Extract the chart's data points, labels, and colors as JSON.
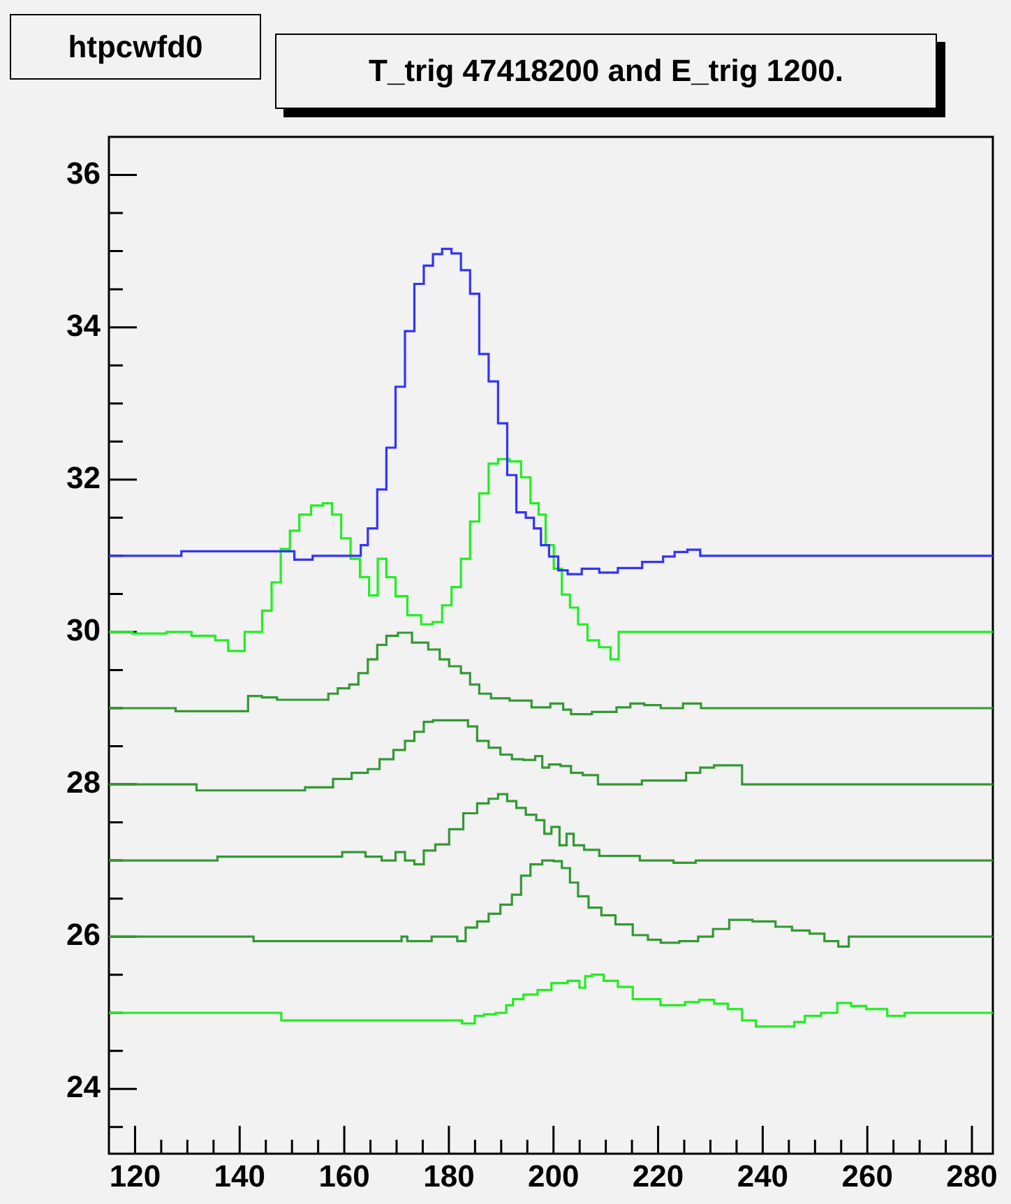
{
  "chart_data": {
    "type": "step",
    "title": "T_trig 47418200 and E_trig 1200.",
    "annotations": [
      "htpcwfd0"
    ],
    "xlim": [
      115,
      284
    ],
    "ylim": [
      23.15,
      36.5
    ],
    "xticks": [
      120,
      {
        "value": 125,
        "label": null
      },
      {
        "value": 130,
        "label": null
      },
      {
        "value": 135,
        "label": null
      },
      140,
      {
        "value": 145,
        "label": null
      },
      {
        "value": 150,
        "label": null
      },
      {
        "value": 155,
        "label": null
      },
      160,
      {
        "value": 165,
        "label": null
      },
      {
        "value": 170,
        "label": null
      },
      {
        "value": 175,
        "label": null
      },
      180,
      {
        "value": 185,
        "label": null
      },
      {
        "value": 190,
        "label": null
      },
      {
        "value": 195,
        "label": null
      },
      200,
      {
        "value": 205,
        "label": null
      },
      {
        "value": 210,
        "label": null
      },
      {
        "value": 215,
        "label": null
      },
      220,
      {
        "value": 225,
        "label": null
      },
      {
        "value": 230,
        "label": null
      },
      {
        "value": 235,
        "label": null
      },
      240,
      {
        "value": 245,
        "label": null
      },
      {
        "value": 250,
        "label": null
      },
      {
        "value": 255,
        "label": null
      },
      260,
      {
        "value": 265,
        "label": null
      },
      {
        "value": 270,
        "label": null
      },
      {
        "value": 275,
        "label": null
      },
      280
    ],
    "yticks": [
      {
        "value": 23.5,
        "label": null
      },
      24,
      {
        "value": 24.5,
        "label": null
      },
      {
        "value": 25,
        "label": null
      },
      {
        "value": 25.5,
        "label": null
      },
      26,
      {
        "value": 26.5,
        "label": null
      },
      {
        "value": 27,
        "label": null
      },
      {
        "value": 27.5,
        "label": null
      },
      28,
      {
        "value": 28.5,
        "label": null
      },
      {
        "value": 29,
        "label": null
      },
      {
        "value": 29.5,
        "label": null
      },
      30,
      {
        "value": 30.5,
        "label": null
      },
      {
        "value": 31,
        "label": null
      },
      {
        "value": 31.5,
        "label": null
      },
      32,
      {
        "value": 32.5,
        "label": null
      },
      {
        "value": 33,
        "label": null
      },
      {
        "value": 33.5,
        "label": null
      },
      34,
      {
        "value": 34.5,
        "label": null
      },
      {
        "value": 35,
        "label": null
      },
      {
        "value": 35.5,
        "label": null
      },
      36
    ],
    "grid": false,
    "legend": false,
    "series": [
      {
        "color": "#3333ff",
        "x": [
          115,
          142.7,
          148,
          152.9,
          155,
          162.7,
          163.6,
          165.4,
          167.2,
          168.9,
          170.7,
          172.5,
          174.3,
          176.1,
          177.8,
          179.6,
          181.4,
          183.2,
          184.9,
          186.7,
          188.5,
          190.3,
          192.0,
          193.8,
          195.6,
          196.9,
          198.3,
          200,
          201.8,
          203.6,
          207.2,
          210.3,
          214.3,
          219.6,
          222.3,
          224,
          227.2,
          228.9,
          284
        ],
        "values": [
          31,
          31.06,
          31.06,
          30.95,
          31,
          31,
          31.14,
          31.36,
          31.87,
          32.42,
          33.22,
          33.95,
          34.57,
          34.81,
          34.96,
          35.03,
          34.97,
          34.75,
          34.44,
          33.65,
          33.29,
          32.74,
          32.06,
          31.57,
          31.5,
          31.36,
          31.14,
          30.99,
          30.81,
          30.76,
          30.83,
          30.78,
          30.84,
          30.92,
          30.99,
          31.05,
          31.08,
          31,
          31
        ]
      },
      {
        "color": "#22ee22",
        "x": [
          115,
          124,
          128,
          133.6,
          137.1,
          138.5,
          143.4,
          145.2,
          147,
          148.7,
          150.5,
          152.3,
          155,
          156.8,
          158.5,
          160.3,
          162.1,
          163.9,
          165.6,
          167.2,
          168.9,
          170.7,
          173.4,
          176,
          177.8,
          179.6,
          181.4,
          183.2,
          184.9,
          186.7,
          188.5,
          190.3,
          192.9,
          194.7,
          196.5,
          197.8,
          199.2,
          200.9,
          202.3,
          204,
          205.4,
          207.6,
          209.8,
          212,
          212.9,
          284
        ],
        "values": [
          30,
          29.98,
          30,
          29.95,
          29.89,
          29.75,
          30,
          30.28,
          30.65,
          31.09,
          31.33,
          31.54,
          31.66,
          31.69,
          31.54,
          31.23,
          30.96,
          30.72,
          30.48,
          30.96,
          30.72,
          30.47,
          30.22,
          30.1,
          30.13,
          30.35,
          30.59,
          30.96,
          31.45,
          31.82,
          32.21,
          32.27,
          32.24,
          32.03,
          31.69,
          31.54,
          31.14,
          30.83,
          30.49,
          30.32,
          30.1,
          29.89,
          29.8,
          29.64,
          30,
          30
        ]
      },
      {
        "color": "#339933",
        "x": [
          115,
          140.5,
          142.7,
          145.8,
          148.5,
          156.5,
          157.4,
          160.1,
          161.8,
          163.6,
          165.4,
          167.2,
          168.9,
          171.6,
          174.3,
          177.8,
          178.7,
          181.4,
          183.2,
          184.9,
          186.7,
          189.4,
          193.8,
          197.8,
          201,
          202.7,
          204,
          210.7,
          213.4,
          216,
          218.7,
          222.3,
          227.2,
          229.2,
          284
        ],
        "values": [
          29,
          28.96,
          29.16,
          29.14,
          29.11,
          29.11,
          29.19,
          29.26,
          29.31,
          29.46,
          29.64,
          29.83,
          29.95,
          29.99,
          29.86,
          29.77,
          29.64,
          29.55,
          29.46,
          29.31,
          29.19,
          29.13,
          29.1,
          29.01,
          29.06,
          28.98,
          28.92,
          28.95,
          29.01,
          29.06,
          29.04,
          29,
          29.06,
          29,
          29
        ]
      },
      {
        "color": "#339933",
        "x": [
          115,
          148.5,
          156.5,
          159.2,
          163.6,
          165.4,
          168.1,
          170.7,
          172.5,
          174.3,
          176.1,
          177.8,
          183.2,
          184.1,
          186.7,
          188.5,
          191.2,
          192.9,
          195.6,
          197.4,
          198.3,
          200,
          202.7,
          204,
          207.2,
          209.8,
          224,
          226.7,
          229.4,
          232,
          235.2,
          236.9,
          284
        ],
        "values": [
          28,
          27.92,
          27.96,
          28.07,
          28.15,
          28.2,
          28.33,
          28.45,
          28.57,
          28.69,
          28.82,
          28.84,
          28.84,
          28.76,
          28.57,
          28.48,
          28.39,
          28.33,
          28.32,
          28.37,
          28.22,
          28.26,
          28.24,
          28.15,
          28.12,
          28,
          28.05,
          28.15,
          28.22,
          28.25,
          28.25,
          28,
          28
        ]
      },
      {
        "color": "#339933",
        "x": [
          115,
          156.5,
          162.7,
          165.4,
          168.9,
          170.7,
          172.5,
          174.3,
          176.1,
          178.7,
          181.4,
          184.1,
          186.7,
          188.5,
          190.3,
          192,
          193.8,
          195.6,
          197.8,
          198.7,
          200.5,
          201.8,
          203.2,
          204.5,
          207.2,
          210.3,
          222.7,
          223.2,
          231.2,
          284
        ],
        "values": [
          27,
          27.05,
          27.11,
          27.05,
          27,
          27.11,
          27,
          26.95,
          27.13,
          27.21,
          27.41,
          27.62,
          27.75,
          27.81,
          27.87,
          27.78,
          27.69,
          27.6,
          27.53,
          27.35,
          27.44,
          27.2,
          27.35,
          27.2,
          27.14,
          27.06,
          27,
          26.97,
          27,
          27
        ]
      },
      {
        "color": "#339933",
        "x": [
          115,
          170.3,
          171.6,
          172.5,
          180.9,
          182.3,
          184.1,
          186.7,
          188.5,
          191.2,
          192.9,
          194.7,
          196.5,
          199.2,
          200.9,
          202.3,
          204,
          205.4,
          208,
          210.3,
          213.4,
          216.9,
          219.2,
          221.8,
          226.3,
          229,
          232,
          235.2,
          240.9,
          244,
          247.2,
          250.7,
          252.9,
          256,
          256.9,
          284
        ],
        "values": [
          26,
          25.94,
          26,
          25.94,
          26,
          25.94,
          26.12,
          26.2,
          26.3,
          26.42,
          26.55,
          26.8,
          26.95,
          27,
          26.99,
          26.9,
          26.71,
          26.53,
          26.38,
          26.28,
          26.16,
          26.02,
          25.96,
          25.92,
          25.94,
          26,
          26.1,
          26.22,
          26.2,
          26.13,
          26.08,
          26.04,
          25.94,
          25.87,
          26,
          26
        ]
      },
      {
        "color": "#22ee22",
        "x": [
          115,
          180.9,
          184.1,
          185.8,
          187.6,
          190.3,
          191.6,
          192.9,
          195.6,
          198.3,
          200.9,
          204.5,
          205.4,
          206.7,
          208,
          211.2,
          213.4,
          216.9,
          224,
          226.3,
          229.4,
          232,
          234.7,
          237.4,
          240,
          245.8,
          246.3,
          249.8,
          252.5,
          256,
          257.8,
          261.8,
          265.8,
          268.5,
          284
        ],
        "values": [
          25,
          24.9,
          24.86,
          24.96,
          24.98,
          25,
          25.1,
          25.18,
          25.24,
          25.3,
          25.39,
          25.42,
          25.33,
          25.48,
          25.5,
          25.42,
          25.34,
          25.18,
          25.1,
          25.14,
          25.17,
          25.12,
          25.05,
          24.9,
          24.82,
          24.82,
          24.88,
          24.96,
          25,
          25.13,
          25.09,
          25.05,
          24.96,
          25,
          25
        ]
      }
    ]
  }
}
